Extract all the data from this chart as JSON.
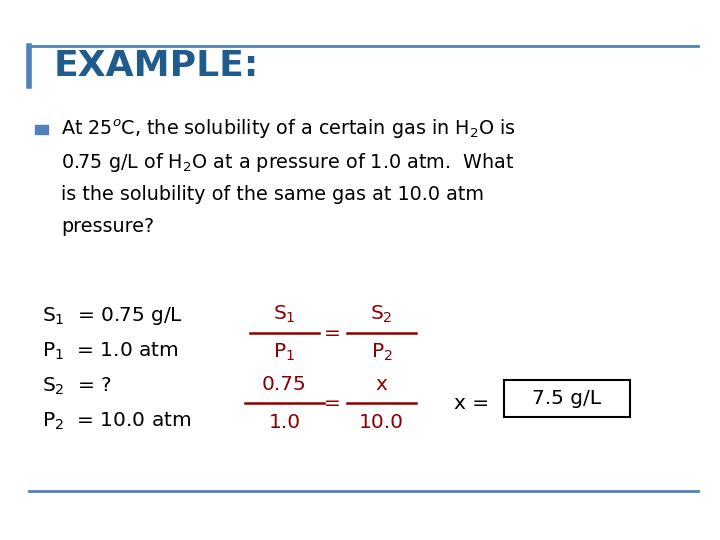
{
  "title": "EXAMPLE:",
  "title_color": "#1F5C8B",
  "title_fontsize": 26,
  "background_color": "#FFFFFF",
  "border_color": "#4F81BD",
  "bullet_color": "#4F81BD",
  "text_color": "#000000",
  "red_color": "#8B0000",
  "bullet_lines": [
    "At 25$^o$C, the solubility of a certain gas in H$_2$O is",
    "0.75 g/L of H$_2$O at a pressure of 1.0 atm.  What",
    "is the solubility of the same gas at 10.0 atm",
    "pressure?"
  ],
  "var_lines": [
    [
      "S$_1$  = 0.75 g/L",
      0.415
    ],
    [
      "P$_1$  = 1.0 atm",
      0.35
    ],
    [
      "S$_2$  = ?",
      0.285
    ],
    [
      "P$_2$  = 10.0 atm",
      0.22
    ]
  ],
  "bottom_line_color": "#4F81BD",
  "answer_box_text": "7.5 g/L"
}
